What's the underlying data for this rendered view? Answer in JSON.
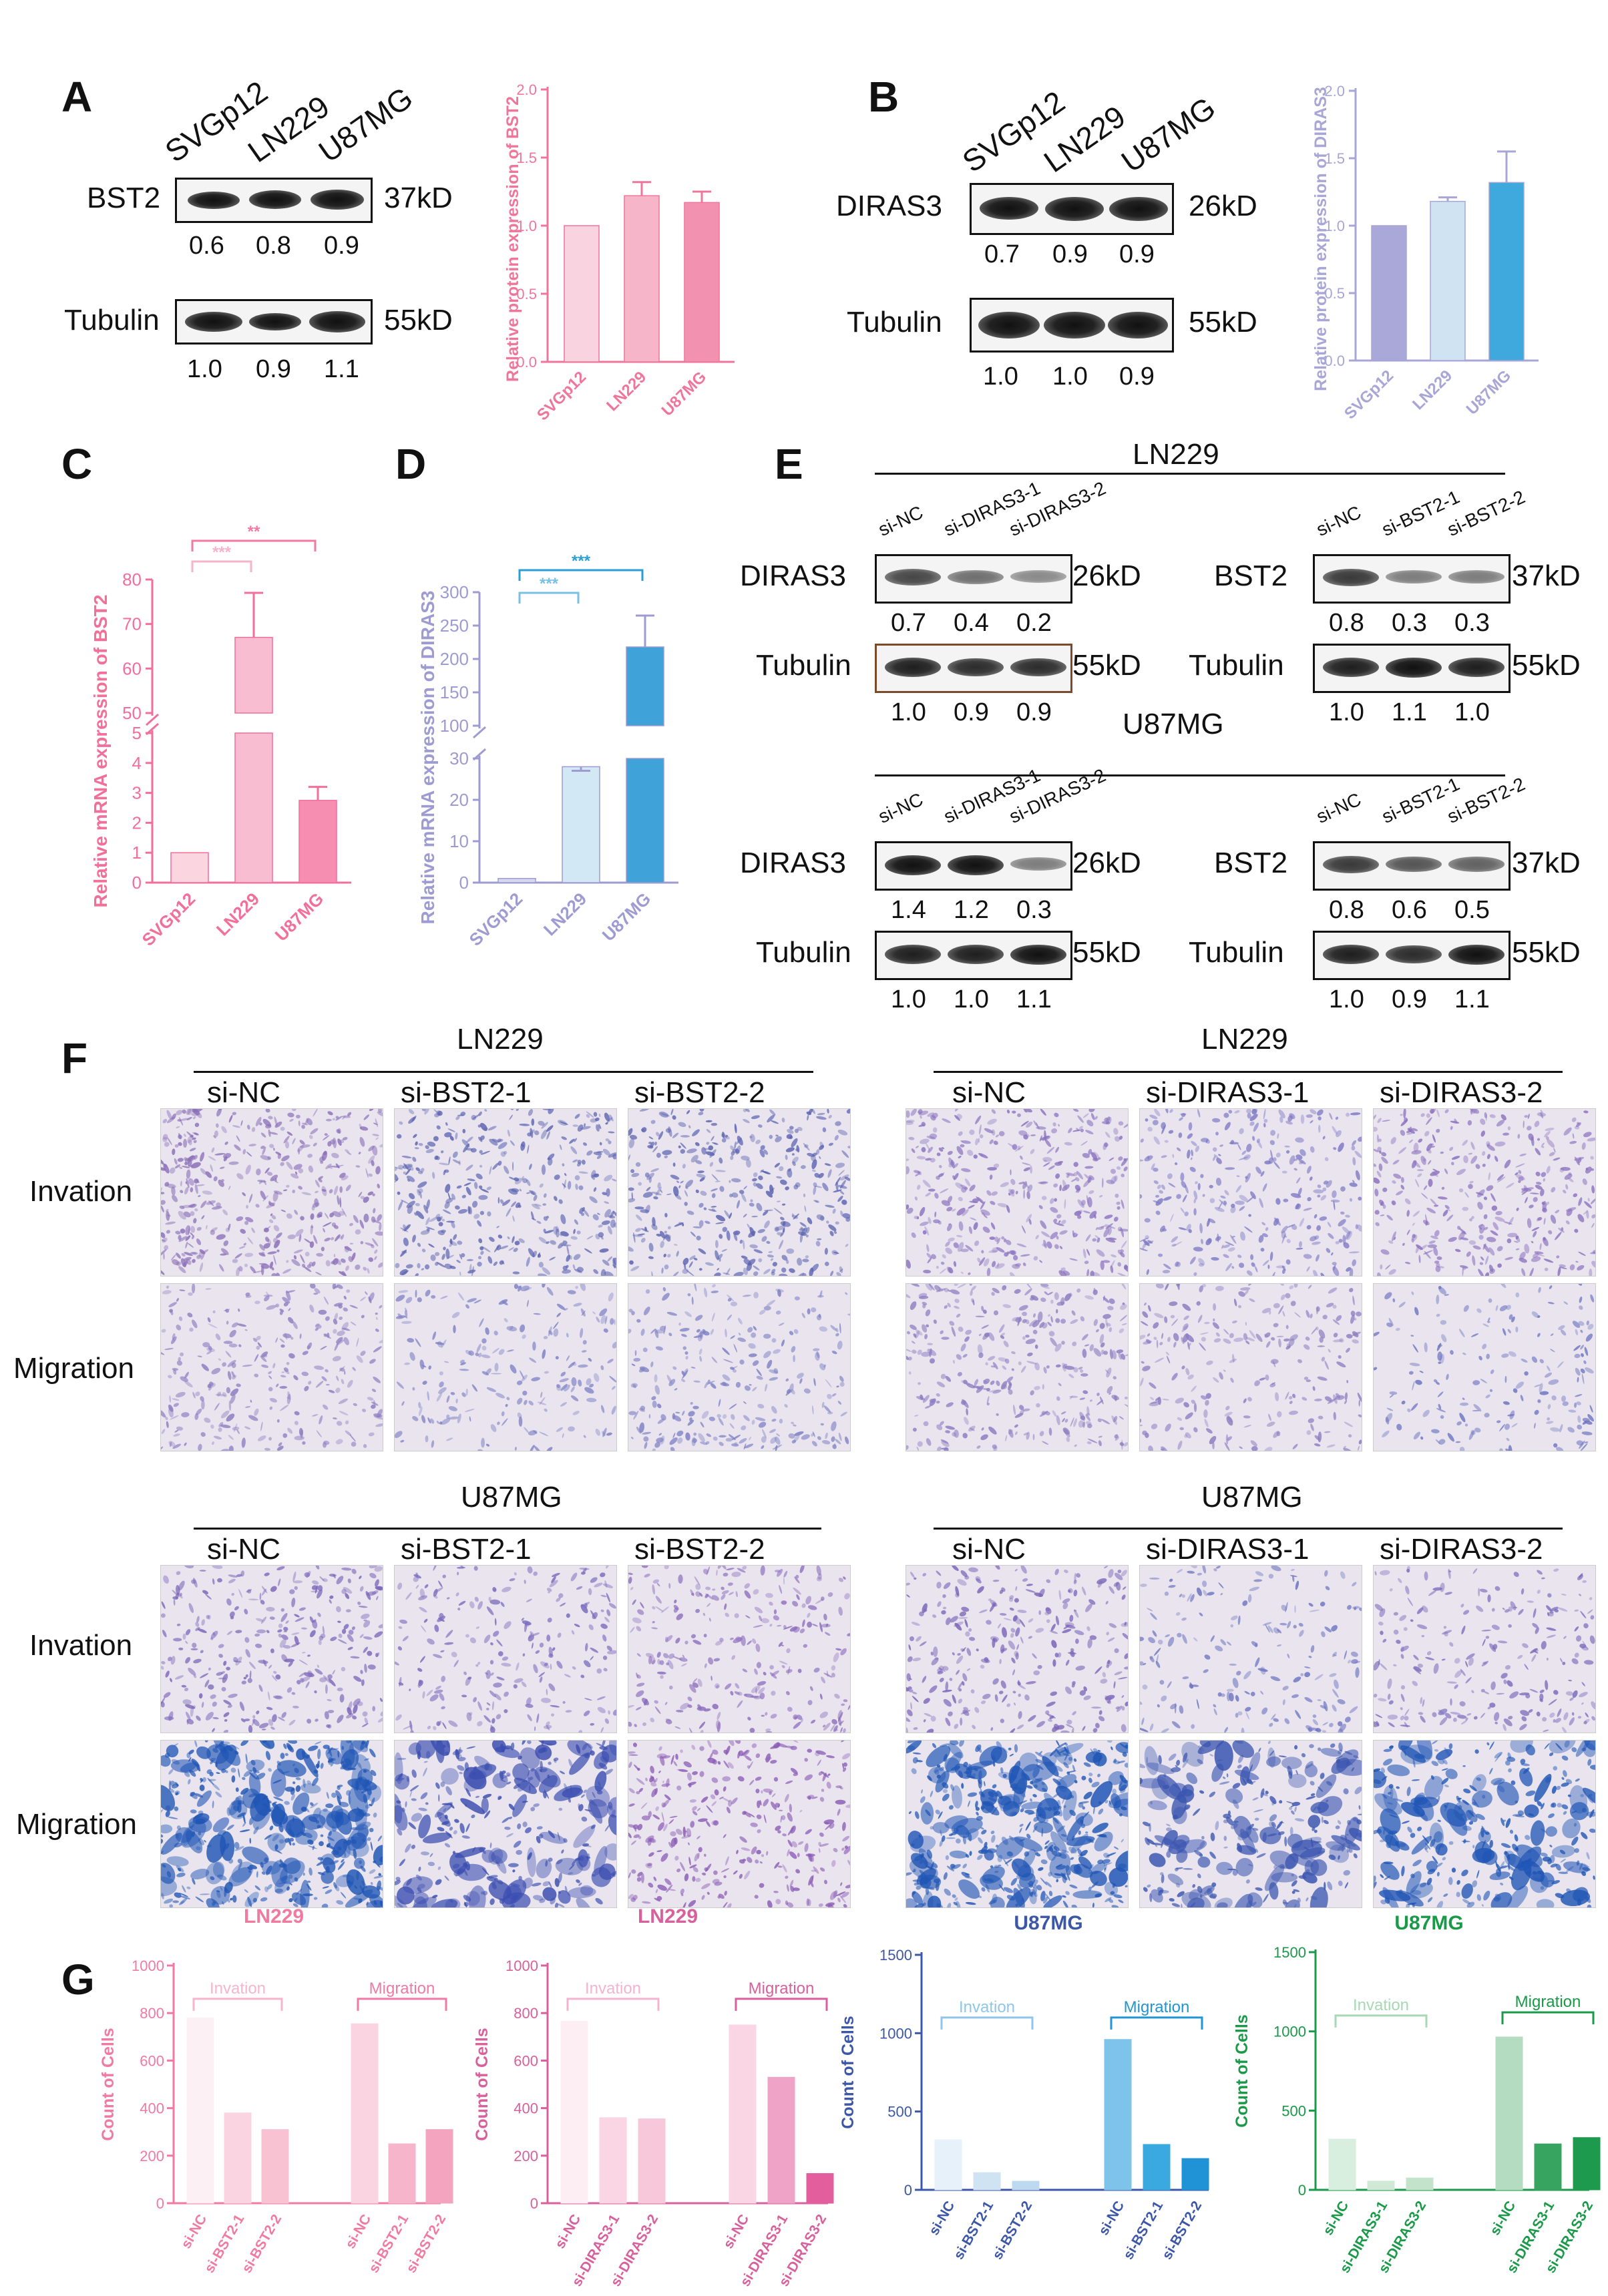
{
  "panels": {
    "A": "A",
    "B": "B",
    "C": "C",
    "D": "D",
    "E": "E",
    "F": "F",
    "G": "G"
  },
  "blotA": {
    "lanes": [
      "SVGp12",
      "LN229",
      "U87MG"
    ],
    "rows": [
      {
        "label": "BST2",
        "kd": "37kD",
        "values": [
          "0.6",
          "0.8",
          "0.9"
        ]
      },
      {
        "label": "Tubulin",
        "kd": "55kD",
        "values": [
          "1.0",
          "0.9",
          "1.1"
        ]
      }
    ]
  },
  "blotB": {
    "lanes": [
      "SVGp12",
      "LN229",
      "U87MG"
    ],
    "rows": [
      {
        "label": "DIRAS3",
        "kd": "26kD",
        "values": [
          "0.7",
          "0.9",
          "0.9"
        ]
      },
      {
        "label": "Tubulin",
        "kd": "55kD",
        "values": [
          "1.0",
          "1.0",
          "0.9"
        ]
      }
    ]
  },
  "blotE": {
    "groups": [
      {
        "cell": "LN229",
        "left": {
          "lanes": [
            "si-NC",
            "si-DIRAS3-1",
            "si-DIRAS3-2"
          ],
          "rows": [
            {
              "label": "DIRAS3",
              "kd": "26kD",
              "values": [
                "0.7",
                "0.4",
                "0.2"
              ]
            },
            {
              "label": "Tubulin",
              "kd": "55kD",
              "values": [
                "1.0",
                "0.9",
                "0.9"
              ]
            }
          ]
        },
        "right": {
          "lanes": [
            "si-NC",
            "si-BST2-1",
            "si-BST2-2"
          ],
          "rows": [
            {
              "label": "BST2",
              "kd": "37kD",
              "values": [
                "0.8",
                "0.3",
                "0.3"
              ]
            },
            {
              "label": "Tubulin",
              "kd": "55kD",
              "values": [
                "1.0",
                "1.1",
                "1.0"
              ]
            }
          ]
        }
      },
      {
        "cell": "U87MG",
        "left": {
          "lanes": [
            "si-NC",
            "si-DIRAS3-1",
            "si-DIRAS3-2"
          ],
          "rows": [
            {
              "label": "DIRAS3",
              "kd": "26kD",
              "values": [
                "1.4",
                "1.2",
                "0.3"
              ]
            },
            {
              "label": "Tubulin",
              "kd": "55kD",
              "values": [
                "1.0",
                "1.0",
                "1.1"
              ]
            }
          ]
        },
        "right": {
          "lanes": [
            "si-NC",
            "si-BST2-1",
            "si-BST2-2"
          ],
          "rows": [
            {
              "label": "BST2",
              "kd": "37kD",
              "values": [
                "0.8",
                "0.6",
                "0.5"
              ]
            },
            {
              "label": "Tubulin",
              "kd": "55kD",
              "values": [
                "1.0",
                "0.9",
                "1.1"
              ]
            }
          ]
        }
      }
    ]
  },
  "panelF": {
    "row_labels": [
      "Invation",
      "Migration"
    ],
    "blocks": [
      {
        "cell": "LN229",
        "cols": [
          "si-NC",
          "si-BST2-1",
          "si-BST2-2"
        ],
        "density": [
          0.95,
          0.8,
          0.8,
          0.55,
          0.35,
          0.5
        ],
        "stain": [
          "#8a6fb8",
          "#5a62b0",
          "#5a62b0",
          "#8a7cc0",
          "#7d80c4",
          "#7d80c4"
        ]
      },
      {
        "cell": "LN229",
        "cols": [
          "si-NC",
          "si-DIRAS3-1",
          "si-DIRAS3-2"
        ],
        "density": [
          0.8,
          0.6,
          0.7,
          0.65,
          0.45,
          0.3
        ],
        "stain": [
          "#8a72bf",
          "#7d78c4",
          "#8a70be",
          "#8a7cc0",
          "#8a7cc0",
          "#6c74c0"
        ]
      },
      {
        "cell": "U87MG",
        "cols": [
          "si-NC",
          "si-BST2-1",
          "si-BST2-2"
        ],
        "density": [
          0.6,
          0.4,
          0.5,
          0.95,
          0.6,
          0.65
        ],
        "stain": [
          "#7a64b8",
          "#7a6cbc",
          "#8a6cbc",
          "#1f55b5",
          "#3a4db0",
          "#8a5cb5"
        ]
      },
      {
        "cell": "U87MG",
        "cols": [
          "si-NC",
          "si-DIRAS3-1",
          "si-DIRAS3-2"
        ],
        "density": [
          0.55,
          0.3,
          0.4,
          0.95,
          0.55,
          0.6
        ],
        "stain": [
          "#7a64b8",
          "#6c74c0",
          "#7a6cbc",
          "#1f55b5",
          "#3a55b0",
          "#1f55b5"
        ]
      }
    ]
  },
  "chart_data": [
    {
      "id": "A-bar",
      "type": "bar",
      "categories": [
        "SVGp12",
        "LN229",
        "U87MG"
      ],
      "values": [
        1.0,
        1.22,
        1.17
      ],
      "errors": [
        0,
        0.1,
        0.08
      ],
      "ylabel": "Relative protein expression of BST2",
      "ylim": [
        0,
        2.0
      ],
      "yticks": [
        "0.0",
        "0.5",
        "1.0",
        "1.5",
        "2.0"
      ],
      "colors": [
        "#f9d3df",
        "#f6b5c9",
        "#f392b0"
      ],
      "axis_color": "#f0759b"
    },
    {
      "id": "B-bar",
      "type": "bar",
      "categories": [
        "SVGp12",
        "LN229",
        "U87MG"
      ],
      "values": [
        1.0,
        1.18,
        1.32
      ],
      "errors": [
        0,
        0.03,
        0.23
      ],
      "ylabel": "Relative protein expression of DIRAS3",
      "ylim": [
        0,
        2.0
      ],
      "yticks": [
        "0.0",
        "0.5",
        "1.0",
        "1.5",
        "2.0"
      ],
      "colors": [
        "#a9a8d8",
        "#cfe3f3",
        "#3fa8dc"
      ],
      "axis_color": "#a7a6d6"
    },
    {
      "id": "C-bar",
      "type": "bar",
      "categories": [
        "SVGp12",
        "LN229",
        "U87MG"
      ],
      "values": [
        1.0,
        67,
        2.75
      ],
      "errors": [
        0,
        10,
        0.45
      ],
      "ylabel": "Relative mRNA expression of BST2",
      "yticks_lower": [
        "0",
        "1",
        "2",
        "3",
        "4",
        "5"
      ],
      "yticks_upper": [
        "50",
        "60",
        "70",
        "80"
      ],
      "significance": [
        {
          "label": "***",
          "from": 0,
          "to": 1
        },
        {
          "label": "**",
          "from": 0,
          "to": 2
        }
      ],
      "colors": [
        "#fbd6e1",
        "#f8bdd0",
        "#f58eb0"
      ],
      "axis_color": "#f26f9a"
    },
    {
      "id": "D-bar",
      "type": "bar",
      "categories": [
        "SVGp12",
        "LN229",
        "U87MG"
      ],
      "values": [
        1.0,
        28,
        218
      ],
      "errors": [
        0,
        4.5,
        47
      ],
      "ylabel": "Relative mRNA expression of DIRAS3",
      "yticks_lower": [
        "0",
        "10",
        "20",
        "30"
      ],
      "yticks_upper": [
        "100",
        "150",
        "200",
        "250",
        "300"
      ],
      "significance": [
        {
          "label": "***",
          "from": 0,
          "to": 1
        },
        {
          "label": "***",
          "from": 0,
          "to": 2
        }
      ],
      "colors": [
        "#d7d7ef",
        "#d3e8f5",
        "#3fa3d9"
      ],
      "axis_color": "#9d9bd1"
    },
    {
      "id": "G1",
      "type": "bar",
      "title": "LN229",
      "categories": [
        "si-NC",
        "si-BST2-1",
        "si-BST2-2",
        "si-NC",
        "si-BST2-1",
        "si-BST2-2"
      ],
      "values": [
        780,
        380,
        310,
        755,
        250,
        310
      ],
      "groups": [
        "Invation",
        "Migration"
      ],
      "ylabel": "Count of Cells",
      "ylim": [
        0,
        1000
      ],
      "yticks": [
        "0",
        "200",
        "400",
        "600",
        "800",
        "1000"
      ],
      "colors": [
        "#fdf0f4",
        "#fad4e0",
        "#f8c2d3",
        "#fad4e0",
        "#f7b5cb",
        "#f5a4bf"
      ],
      "axis_color": "#f07aa0"
    },
    {
      "id": "G2",
      "type": "bar",
      "title": "LN229",
      "categories": [
        "si-NC",
        "si-DIRAS3-1",
        "si-DIRAS3-2",
        "si-NC",
        "si-DIRAS3-1",
        "si-DIRAS3-2"
      ],
      "values": [
        765,
        360,
        355,
        750,
        530,
        125
      ],
      "groups": [
        "Invation",
        "Migration"
      ],
      "ylabel": "Count of Cells",
      "ylim": [
        0,
        1000
      ],
      "yticks": [
        "0",
        "200",
        "400",
        "600",
        "800",
        "1000"
      ],
      "colors": [
        "#fdeef4",
        "#fad5e3",
        "#f7c8da",
        "#fad5e3",
        "#efa3c6",
        "#e25e9c"
      ],
      "axis_color": "#d8609c"
    },
    {
      "id": "G3",
      "type": "bar",
      "title": "U87MG",
      "categories": [
        "si-NC",
        "si-BST2-1",
        "si-BST2-2",
        "si-NC",
        "si-BST2-1",
        "si-BST2-2"
      ],
      "values": [
        320,
        110,
        55,
        960,
        290,
        200
      ],
      "groups": [
        "Invation",
        "Migration"
      ],
      "ylabel": "Count of Cells",
      "ylim": [
        0,
        1500
      ],
      "yticks": [
        "0",
        "500",
        "1000",
        "1500"
      ],
      "colors": [
        "#e6f1fa",
        "#cfe3f3",
        "#bcd9ef",
        "#7ec4ea",
        "#3aa9e0",
        "#1f93d6"
      ],
      "axis_color": "#3d57a8"
    },
    {
      "id": "G4",
      "type": "bar",
      "title": "U87MG",
      "categories": [
        "si-NC",
        "si-DIRAS3-1",
        "si-DIRAS3-2",
        "si-NC",
        "si-DIRAS3-1",
        "si-DIRAS3-2"
      ],
      "values": [
        320,
        55,
        75,
        965,
        290,
        330
      ],
      "groups": [
        "Invation",
        "Migration"
      ],
      "ylabel": "Count of Cells",
      "ylim": [
        0,
        1500
      ],
      "yticks": [
        "0",
        "500",
        "1000",
        "1500"
      ],
      "colors": [
        "#d8eede",
        "#cfe9d6",
        "#c3e3cb",
        "#b3dcc0",
        "#37a45f",
        "#1d9a4d"
      ],
      "axis_color": "#1a9a48"
    }
  ]
}
